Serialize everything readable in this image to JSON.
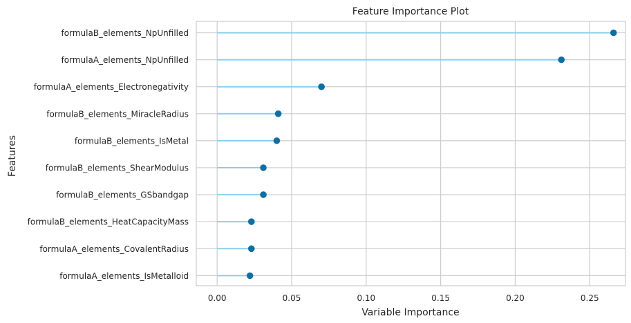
{
  "chart_data": {
    "type": "lollipop",
    "title": "Feature Importance Plot",
    "xlabel": "Variable Importance",
    "ylabel": "Features",
    "xlim": [
      -0.014,
      0.274
    ],
    "xticks": [
      0.0,
      0.05,
      0.1,
      0.15,
      0.2,
      0.25
    ],
    "xtick_labels": [
      "0.00",
      "0.05",
      "0.10",
      "0.15",
      "0.20",
      "0.25"
    ],
    "grid": true,
    "categories": [
      "formulaB_elements_NpUnfilled",
      "formulaA_elements_NpUnfilled",
      "formulaA_elements_Electronegativity",
      "formulaB_elements_MiracleRadius",
      "formulaB_elements_IsMetal",
      "formulaB_elements_ShearModulus",
      "formulaB_elements_GSbandgap",
      "formulaB_elements_HeatCapacityMass",
      "formulaA_elements_CovalentRadius",
      "formulaA_elements_IsMetalloid"
    ],
    "values": [
      0.266,
      0.231,
      0.07,
      0.041,
      0.04,
      0.031,
      0.031,
      0.023,
      0.023,
      0.022
    ],
    "colors": {
      "stem": "#87cef0",
      "marker": "#0f6fa3",
      "grid": "#cccccc",
      "spine": "#cccccc",
      "text": "#262626"
    }
  }
}
